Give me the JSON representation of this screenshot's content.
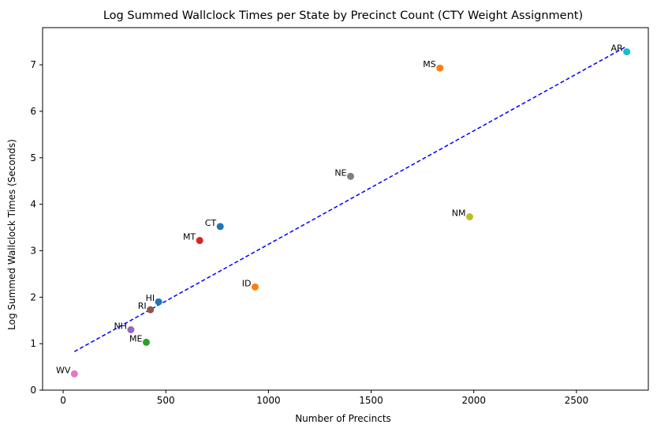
{
  "chart_data": {
    "type": "scatter",
    "title": "Log Summed Wallclock Times per State by Precinct Count (CTY Weight Assignment)",
    "xlabel": "Number of Precincts",
    "ylabel": "Log Summed Wallclock Times (Seconds)",
    "xlim": [
      -100,
      2850
    ],
    "ylim": [
      0,
      7.8
    ],
    "xticks": [
      0,
      500,
      1000,
      1500,
      2000,
      2500
    ],
    "yticks": [
      0,
      1,
      2,
      3,
      4,
      5,
      6,
      7
    ],
    "grid": false,
    "legend": "none",
    "points": [
      {
        "label": "WV",
        "x": 55,
        "y": 0.35,
        "color": "#e377c2"
      },
      {
        "label": "ME",
        "x": 405,
        "y": 1.03,
        "color": "#2ca02c"
      },
      {
        "label": "NH",
        "x": 330,
        "y": 1.3,
        "color": "#9467bd"
      },
      {
        "label": "RI",
        "x": 425,
        "y": 1.73,
        "color": "#8c564b"
      },
      {
        "label": "HI",
        "x": 465,
        "y": 1.9,
        "color": "#1f77b4"
      },
      {
        "label": "ID",
        "x": 935,
        "y": 2.22,
        "color": "#ff7f0e"
      },
      {
        "label": "MT",
        "x": 665,
        "y": 3.22,
        "color": "#d62728"
      },
      {
        "label": "CT",
        "x": 765,
        "y": 3.52,
        "color": "#1f77b4"
      },
      {
        "label": "NE",
        "x": 1400,
        "y": 4.6,
        "color": "#7f7f7f"
      },
      {
        "label": "NM",
        "x": 1980,
        "y": 3.73,
        "color": "#bcbd22"
      },
      {
        "label": "MS",
        "x": 1835,
        "y": 6.93,
        "color": "#ff7f0e"
      },
      {
        "label": "AR",
        "x": 2745,
        "y": 7.28,
        "color": "#17becf"
      }
    ],
    "trendline": {
      "x": [
        55,
        2745
      ],
      "y": [
        0.83,
        7.4
      ],
      "color": "#0000ff",
      "style": "dashed"
    }
  }
}
